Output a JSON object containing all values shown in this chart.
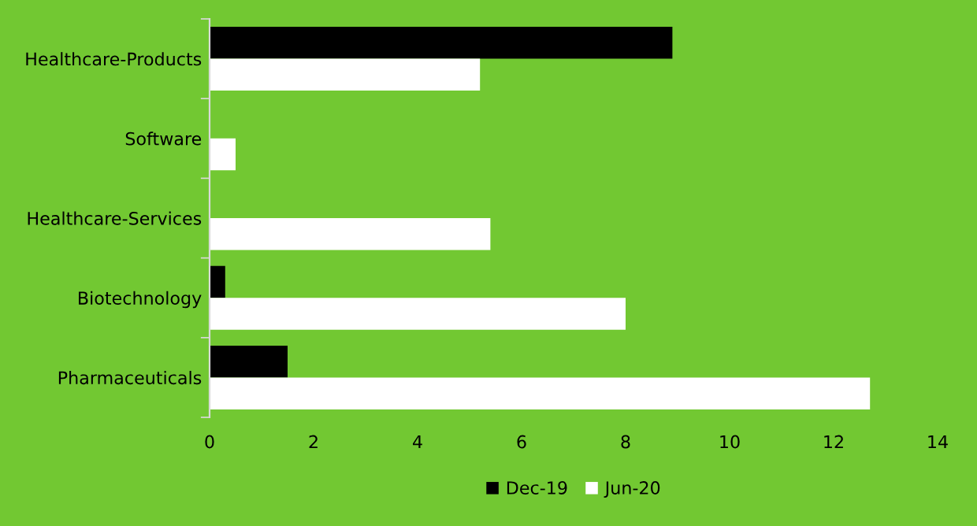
{
  "chart_data": {
    "type": "bar",
    "orientation": "horizontal",
    "categories": [
      "Healthcare-Products",
      "Software",
      "Healthcare-Services",
      "Biotechnology",
      "Pharmaceuticals"
    ],
    "series": [
      {
        "name": "Dec-19",
        "color": "#000000",
        "values": [
          8.9,
          0,
          0,
          0.3,
          1.5
        ]
      },
      {
        "name": "Jun-20",
        "color": "#ffffff",
        "values": [
          5.2,
          0.5,
          5.4,
          8.0,
          12.7
        ]
      }
    ],
    "xlim": [
      0,
      14
    ],
    "xticks": [
      0,
      2,
      4,
      6,
      8,
      10,
      12,
      14
    ],
    "grid": false,
    "legend": "bottom"
  }
}
